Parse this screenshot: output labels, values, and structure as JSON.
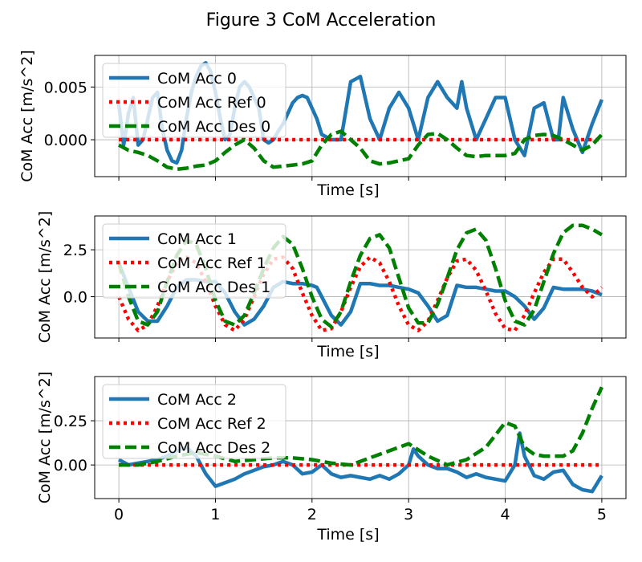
{
  "figure": {
    "title": "Figure 3 CoM Acceleration"
  },
  "colors": {
    "acc": "#1f77b4",
    "ref": "#ff0000",
    "des": "#008000",
    "grid": "#b0b0b0"
  },
  "chart_data": [
    {
      "type": "line",
      "xlabel": "Time [s]",
      "ylabel": "CoM Acc [m/s^2]",
      "xlim": [
        -0.25,
        5.25
      ],
      "ylim": [
        -0.0035,
        0.008
      ],
      "xticks": [
        0,
        1,
        2,
        3,
        4,
        5
      ],
      "xtick_labels": [
        "",
        "",
        "",
        "",
        "",
        ""
      ],
      "yticks": [
        0.0,
        0.005
      ],
      "ytick_labels": [
        "0.000",
        "0.005"
      ],
      "grid": true,
      "legend": "upper left",
      "series": [
        {
          "name": "CoM Acc 0",
          "style": "solid",
          "color": "#1f77b4",
          "x": [
            0,
            0.05,
            0.1,
            0.15,
            0.2,
            0.25,
            0.3,
            0.35,
            0.4,
            0.45,
            0.5,
            0.55,
            0.6,
            0.65,
            0.7,
            0.75,
            0.8,
            0.85,
            0.9,
            0.95,
            1.0,
            1.05,
            1.1,
            1.15,
            1.2,
            1.25,
            1.3,
            1.35,
            1.4,
            1.45,
            1.5,
            1.55,
            1.6,
            1.65,
            1.7,
            1.75,
            1.8,
            1.85,
            1.9,
            1.95,
            2.0,
            2.05,
            2.1,
            2.2,
            2.3,
            2.4,
            2.5,
            2.6,
            2.7,
            2.8,
            2.9,
            3.0,
            3.1,
            3.2,
            3.3,
            3.4,
            3.5,
            3.55,
            3.6,
            3.7,
            3.8,
            3.9,
            4.0,
            4.1,
            4.2,
            4.3,
            4.4,
            4.5,
            4.55,
            4.6,
            4.7,
            4.8,
            4.9,
            5.0
          ],
          "y": [
            0.0033,
            -0.0005,
            0.0025,
            0.004,
            -0.0005,
            0.0,
            0.002,
            0.004,
            0.0045,
            0.001,
            -0.001,
            -0.002,
            -0.0022,
            -0.001,
            0.002,
            0.0045,
            0.006,
            0.007,
            0.0073,
            0.0065,
            0.0045,
            0.002,
            0.0,
            0.0005,
            0.003,
            0.005,
            0.0055,
            0.005,
            0.004,
            0.003,
            0.0,
            -0.0003,
            0.0,
            0.0008,
            0.0015,
            0.0025,
            0.0035,
            0.004,
            0.0042,
            0.004,
            0.003,
            0.002,
            0.0005,
            0.0,
            0.0,
            0.0055,
            0.006,
            0.002,
            0.0,
            0.003,
            0.0045,
            0.003,
            0.0,
            0.004,
            0.0055,
            0.004,
            0.003,
            0.0055,
            0.003,
            0.0,
            0.002,
            0.004,
            0.004,
            0.0,
            -0.0015,
            0.003,
            0.0035,
            0.0,
            0.0,
            0.004,
            0.001,
            -0.0012,
            0.0015,
            0.0038
          ]
        },
        {
          "name": "CoM Acc Ref 0",
          "style": "dotted",
          "color": "#ff0000",
          "x": [
            0,
            5.0
          ],
          "y": [
            0.0,
            0.0
          ]
        },
        {
          "name": "CoM Acc Des 0",
          "style": "dashed",
          "color": "#008000",
          "x": [
            0,
            0.1,
            0.2,
            0.3,
            0.4,
            0.5,
            0.6,
            0.7,
            0.8,
            0.9,
            1.0,
            1.1,
            1.2,
            1.3,
            1.4,
            1.5,
            1.6,
            1.7,
            1.8,
            1.9,
            2.0,
            2.1,
            2.2,
            2.3,
            2.4,
            2.5,
            2.6,
            2.7,
            2.8,
            2.9,
            3.0,
            3.1,
            3.2,
            3.3,
            3.4,
            3.5,
            3.6,
            3.7,
            3.8,
            3.9,
            4.0,
            4.1,
            4.2,
            4.3,
            4.4,
            4.5,
            4.6,
            4.7,
            4.8,
            4.9,
            5.0
          ],
          "y": [
            -0.0005,
            -0.001,
            -0.0012,
            -0.0015,
            -0.002,
            -0.0026,
            -0.0028,
            -0.0027,
            -0.0025,
            -0.0024,
            -0.002,
            -0.0012,
            -0.0005,
            0.0,
            -0.0008,
            -0.002,
            -0.0026,
            -0.0025,
            -0.0024,
            -0.0023,
            -0.002,
            -0.0005,
            0.0005,
            0.0008,
            0.0,
            -0.0008,
            -0.002,
            -0.0023,
            -0.0022,
            -0.002,
            -0.0018,
            -0.0005,
            0.0005,
            0.0006,
            0.0,
            -0.0008,
            -0.0015,
            -0.0016,
            -0.0015,
            -0.0015,
            -0.0015,
            -0.0013,
            0.0,
            0.0004,
            0.0005,
            0.0004,
            0.0,
            -0.0005,
            -0.001,
            -0.0005,
            0.0005
          ]
        }
      ]
    },
    {
      "type": "line",
      "xlabel": "Time [s]",
      "ylabel": "CoM Acc [m/s^2]",
      "xlim": [
        -0.25,
        5.25
      ],
      "ylim": [
        -2.2,
        4.3
      ],
      "xticks": [
        0,
        1,
        2,
        3,
        4,
        5
      ],
      "xtick_labels": [
        "",
        "",
        "",
        "",
        "",
        ""
      ],
      "yticks": [
        0.0,
        2.5
      ],
      "ytick_labels": [
        "0.0",
        "2.5"
      ],
      "grid": true,
      "legend": "upper left",
      "series": [
        {
          "name": "CoM Acc 1",
          "style": "solid",
          "color": "#1f77b4",
          "x": [
            0,
            0.1,
            0.2,
            0.3,
            0.4,
            0.5,
            0.6,
            0.7,
            0.8,
            0.9,
            1.0,
            1.1,
            1.2,
            1.3,
            1.4,
            1.5,
            1.6,
            1.7,
            1.8,
            1.9,
            2.0,
            2.05,
            2.1,
            2.2,
            2.3,
            2.4,
            2.5,
            2.6,
            2.7,
            2.8,
            2.9,
            3.0,
            3.1,
            3.2,
            3.3,
            3.4,
            3.5,
            3.6,
            3.7,
            3.8,
            3.9,
            4.0,
            4.1,
            4.2,
            4.3,
            4.4,
            4.5,
            4.6,
            4.7,
            4.8,
            4.9,
            5.0
          ],
          "y": [
            1.8,
            0.5,
            -0.8,
            -1.3,
            -1.3,
            -0.5,
            0.5,
            0.9,
            0.9,
            0.8,
            0.8,
            0.2,
            -0.8,
            -1.5,
            -1.2,
            -0.5,
            0.5,
            0.8,
            0.7,
            0.7,
            0.6,
            0.5,
            0.0,
            -1.0,
            -1.5,
            -0.8,
            0.7,
            0.7,
            0.6,
            0.6,
            0.5,
            0.4,
            0.2,
            -0.5,
            -1.3,
            -1.0,
            0.6,
            0.5,
            0.5,
            0.4,
            0.3,
            0.3,
            0.0,
            -0.5,
            -1.2,
            -0.6,
            0.5,
            0.4,
            0.4,
            0.4,
            0.3,
            0.1
          ]
        },
        {
          "name": "CoM Acc Ref 1",
          "style": "dotted",
          "color": "#ff0000",
          "x": [
            0,
            0.1,
            0.2,
            0.3,
            0.4,
            0.5,
            0.6,
            0.7,
            0.8,
            0.9,
            1.0,
            1.1,
            1.2,
            1.3,
            1.4,
            1.5,
            1.6,
            1.7,
            1.8,
            1.9,
            2.0,
            2.1,
            2.2,
            2.3,
            2.4,
            2.5,
            2.6,
            2.7,
            2.8,
            2.9,
            3.0,
            3.1,
            3.2,
            3.3,
            3.4,
            3.5,
            3.6,
            3.7,
            3.8,
            3.9,
            4.0,
            4.1,
            4.2,
            4.3,
            4.4,
            4.5,
            4.6,
            4.7,
            4.8,
            4.9,
            5.0
          ],
          "y": [
            0.0,
            -1.2,
            -1.8,
            -1.5,
            -0.5,
            0.8,
            1.8,
            2.1,
            1.8,
            0.8,
            -0.5,
            -1.5,
            -1.8,
            -1.2,
            0.0,
            1.2,
            2.0,
            2.1,
            1.5,
            0.2,
            -1.0,
            -1.8,
            -1.7,
            -0.8,
            0.5,
            1.6,
            2.1,
            1.8,
            0.8,
            -0.5,
            -1.5,
            -1.8,
            -1.3,
            -0.2,
            1.0,
            1.9,
            2.0,
            1.4,
            0.3,
            -0.9,
            -1.7,
            -1.8,
            -1.0,
            0.2,
            1.3,
            2.0,
            2.0,
            1.3,
            0.5,
            0.0,
            0.5
          ]
        },
        {
          "name": "CoM Acc Des 1",
          "style": "dashed",
          "color": "#008000",
          "x": [
            0,
            0.1,
            0.2,
            0.3,
            0.4,
            0.5,
            0.6,
            0.7,
            0.8,
            0.9,
            1.0,
            1.1,
            1.2,
            1.3,
            1.4,
            1.5,
            1.6,
            1.7,
            1.8,
            1.9,
            2.0,
            2.1,
            2.2,
            2.3,
            2.4,
            2.5,
            2.6,
            2.7,
            2.8,
            2.9,
            3.0,
            3.1,
            3.2,
            3.3,
            3.4,
            3.5,
            3.6,
            3.7,
            3.8,
            3.9,
            4.0,
            4.1,
            4.2,
            4.3,
            4.4,
            4.5,
            4.6,
            4.7,
            4.8,
            4.9,
            5.0
          ],
          "y": [
            1.8,
            0.0,
            -1.3,
            -1.5,
            -0.8,
            0.8,
            2.2,
            3.0,
            2.8,
            1.5,
            -0.2,
            -1.3,
            -1.5,
            -1.0,
            0.2,
            1.5,
            2.6,
            3.2,
            2.8,
            1.5,
            0.0,
            -1.2,
            -1.6,
            -0.8,
            0.8,
            2.2,
            3.1,
            3.3,
            2.6,
            1.0,
            -0.6,
            -1.4,
            -1.4,
            -0.4,
            1.0,
            2.5,
            3.4,
            3.6,
            3.0,
            1.5,
            -0.2,
            -1.3,
            -1.5,
            -0.7,
            0.8,
            2.3,
            3.4,
            3.8,
            3.8,
            3.6,
            3.3
          ]
        }
      ]
    },
    {
      "type": "line",
      "xlabel": "Time [s]",
      "ylabel": "CoM Acc [m/s^2]",
      "xlim": [
        -0.25,
        5.25
      ],
      "ylim": [
        -0.19,
        0.5
      ],
      "xticks": [
        0,
        1,
        2,
        3,
        4,
        5
      ],
      "xtick_labels": [
        "0",
        "1",
        "2",
        "3",
        "4",
        "5"
      ],
      "yticks": [
        0.0,
        0.25
      ],
      "ytick_labels": [
        "0.00",
        "0.25"
      ],
      "grid": true,
      "legend": "upper left",
      "series": [
        {
          "name": "CoM Acc 2",
          "style": "solid",
          "color": "#1f77b4",
          "x": [
            0,
            0.1,
            0.2,
            0.3,
            0.4,
            0.5,
            0.6,
            0.7,
            0.8,
            0.9,
            1.0,
            1.1,
            1.2,
            1.3,
            1.4,
            1.5,
            1.6,
            1.7,
            1.8,
            1.9,
            2.0,
            2.1,
            2.2,
            2.3,
            2.4,
            2.5,
            2.6,
            2.7,
            2.8,
            2.9,
            3.0,
            3.05,
            3.1,
            3.2,
            3.3,
            3.4,
            3.5,
            3.6,
            3.7,
            3.8,
            3.9,
            4.0,
            4.1,
            4.15,
            4.2,
            4.3,
            4.4,
            4.5,
            4.6,
            4.7,
            4.8,
            4.9,
            5.0
          ],
          "y": [
            0.03,
            0.0,
            0.01,
            0.02,
            0.03,
            0.05,
            0.08,
            0.1,
            0.05,
            -0.05,
            -0.12,
            -0.1,
            -0.08,
            -0.05,
            -0.03,
            -0.01,
            0.0,
            0.02,
            0.0,
            -0.05,
            -0.04,
            0.0,
            -0.05,
            -0.07,
            -0.06,
            -0.07,
            -0.08,
            -0.06,
            -0.08,
            -0.05,
            0.0,
            0.09,
            0.05,
            0.0,
            -0.02,
            -0.02,
            -0.04,
            -0.07,
            -0.05,
            -0.07,
            -0.08,
            -0.09,
            0.0,
            0.18,
            0.05,
            -0.06,
            -0.08,
            -0.04,
            -0.03,
            -0.11,
            -0.14,
            -0.15,
            -0.06
          ]
        },
        {
          "name": "CoM Acc Ref 2",
          "style": "dotted",
          "color": "#ff0000",
          "x": [
            0,
            5.0
          ],
          "y": [
            0.0,
            0.0
          ]
        },
        {
          "name": "CoM Acc Des 2",
          "style": "dashed",
          "color": "#008000",
          "x": [
            0,
            0.2,
            0.4,
            0.6,
            0.8,
            1.0,
            1.2,
            1.4,
            1.6,
            1.8,
            2.0,
            2.2,
            2.4,
            2.6,
            2.8,
            3.0,
            3.2,
            3.4,
            3.6,
            3.8,
            4.0,
            4.1,
            4.2,
            4.3,
            4.4,
            4.5,
            4.6,
            4.7,
            4.8,
            4.9,
            5.0
          ],
          "y": [
            0.0,
            0.0,
            0.02,
            0.05,
            0.07,
            0.05,
            0.02,
            0.03,
            0.04,
            0.04,
            0.03,
            0.01,
            0.0,
            0.04,
            0.08,
            0.12,
            0.05,
            0.0,
            0.03,
            0.1,
            0.24,
            0.22,
            0.1,
            0.06,
            0.05,
            0.05,
            0.05,
            0.08,
            0.18,
            0.32,
            0.44
          ]
        }
      ]
    }
  ]
}
